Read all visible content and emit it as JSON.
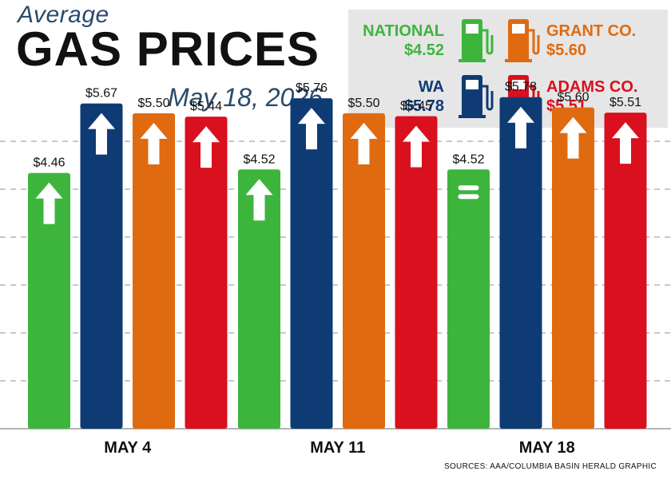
{
  "header": {
    "kicker": "Average",
    "title": "GAS PRICES",
    "date": "May 18, 2026"
  },
  "legend": {
    "items": [
      {
        "name": "NATIONAL",
        "value": "$4.52",
        "color": "#3db53d",
        "icon": "gas-pump-icon"
      },
      {
        "name": "GRANT CO.",
        "value": "$5.60",
        "color": "#e06a10",
        "icon": "gas-pump-icon"
      },
      {
        "name": "WA",
        "value": "$5.78",
        "color": "#0f3b75",
        "icon": "gas-pump-icon"
      },
      {
        "name": "ADAMS CO.",
        "value": "$5.51",
        "color": "#d9101e",
        "icon": "gas-pump-icon"
      }
    ]
  },
  "chart_data": {
    "type": "bar",
    "categories": [
      "MAY 4",
      "MAY 11",
      "MAY 18"
    ],
    "series": [
      {
        "name": "NATIONAL",
        "color": "#3db53d",
        "values": [
          4.46,
          4.52,
          4.52
        ],
        "labels": [
          "$4.46",
          "$4.52",
          "$4.52"
        ],
        "trend": [
          "up",
          "up",
          "equal"
        ]
      },
      {
        "name": "WA",
        "color": "#0f3b75",
        "values": [
          5.67,
          5.76,
          5.78
        ],
        "labels": [
          "$5.67",
          "$5.76",
          "$5.78"
        ],
        "trend": [
          "up",
          "up",
          "up"
        ]
      },
      {
        "name": "GRANT CO.",
        "color": "#e06a10",
        "values": [
          5.5,
          5.5,
          5.6
        ],
        "labels": [
          "$5.50",
          "$5.50",
          "$5.60"
        ],
        "trend": [
          "up",
          "up",
          "up"
        ]
      },
      {
        "name": "ADAMS CO.",
        "color": "#d9101e",
        "values": [
          5.44,
          5.45,
          5.51
        ],
        "labels": [
          "$5.44",
          "$5.45",
          "$5.51"
        ],
        "trend": [
          "up",
          "up",
          "up"
        ]
      }
    ],
    "ylim": [
      0,
      6.5
    ],
    "grid": true
  },
  "source": "SOURCES: AAA/COLUMBIA BASIN HERALD GRAPHIC"
}
